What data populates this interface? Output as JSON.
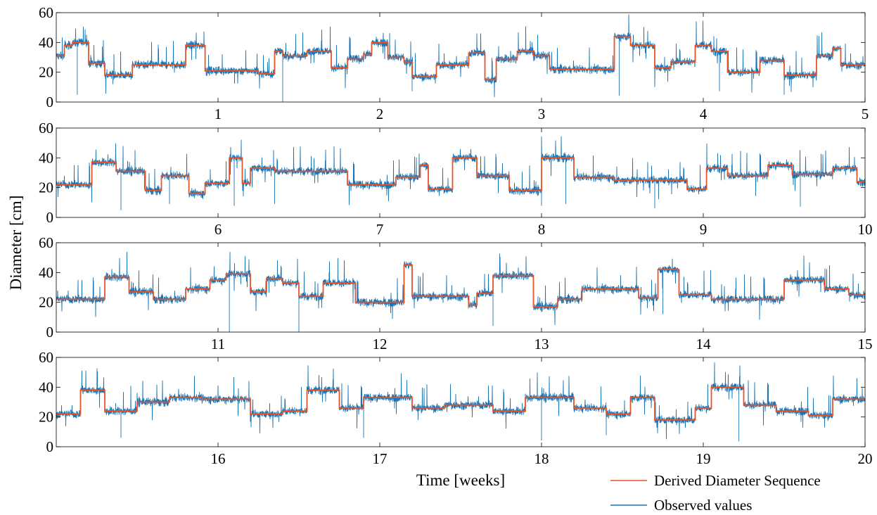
{
  "chart_data": {
    "type": "line",
    "layout": "4 stacked panels sharing one y-axis label",
    "ylabel": "Diameter [cm]",
    "xlabel": "Time [weeks]",
    "grid": false,
    "legend_placement": "bottom-right, below plot",
    "colors": {
      "derived": "#e8542a",
      "observed": "#1a74b4"
    },
    "series_legend": [
      {
        "name": "Derived Diameter Sequence",
        "color": "#e8542a"
      },
      {
        "name": "Observed values",
        "color": "#1a74b4"
      }
    ],
    "panels": [
      {
        "xlim": [
          0,
          5
        ],
        "ylim": [
          0,
          60
        ],
        "xticks": [
          1,
          2,
          3,
          4,
          5
        ],
        "xtick_labels": [
          "1",
          "2",
          "3",
          "4",
          "5"
        ],
        "yticks": [
          0,
          20,
          40,
          60
        ],
        "ytick_labels": [
          "0",
          "20",
          "40",
          "60"
        ],
        "derived_segments": [
          [
            0,
            0.05,
            31
          ],
          [
            0.05,
            0.1,
            38
          ],
          [
            0.1,
            0.2,
            40
          ],
          [
            0.2,
            0.3,
            26
          ],
          [
            0.3,
            0.47,
            18
          ],
          [
            0.47,
            0.8,
            25
          ],
          [
            0.8,
            0.92,
            38
          ],
          [
            0.92,
            1.25,
            21
          ],
          [
            1.25,
            1.35,
            19
          ],
          [
            1.35,
            1.4,
            34
          ],
          [
            1.4,
            1.55,
            31
          ],
          [
            1.55,
            1.7,
            34
          ],
          [
            1.7,
            1.8,
            23
          ],
          [
            1.8,
            1.9,
            29
          ],
          [
            1.9,
            1.95,
            32
          ],
          [
            1.95,
            2.05,
            40
          ],
          [
            2.05,
            2.15,
            30
          ],
          [
            2.15,
            2.2,
            27
          ],
          [
            2.2,
            2.35,
            17
          ],
          [
            2.35,
            2.55,
            25
          ],
          [
            2.55,
            2.65,
            33
          ],
          [
            2.65,
            2.72,
            15
          ],
          [
            2.72,
            2.85,
            29
          ],
          [
            2.85,
            2.95,
            34
          ],
          [
            2.95,
            3.05,
            31
          ],
          [
            3.05,
            3.45,
            22
          ],
          [
            3.45,
            3.55,
            44
          ],
          [
            3.55,
            3.7,
            38
          ],
          [
            3.7,
            3.8,
            23
          ],
          [
            3.8,
            3.95,
            27
          ],
          [
            3.95,
            4.05,
            38
          ],
          [
            4.05,
            4.15,
            34
          ],
          [
            4.15,
            4.35,
            20
          ],
          [
            4.35,
            4.5,
            28
          ],
          [
            4.5,
            4.7,
            18
          ],
          [
            4.7,
            4.8,
            31
          ],
          [
            4.8,
            4.85,
            36
          ],
          [
            4.85,
            5,
            25
          ]
        ],
        "observed_spikes": [
          [
            0.13,
            0.08
          ],
          [
            0.35,
            0.2
          ],
          [
            1.4,
            0.0
          ],
          [
            1.62,
            0.61
          ],
          [
            2.2,
            0.12
          ],
          [
            3.48,
            0.07
          ],
          [
            4.1,
            0.12
          ],
          [
            4.5,
            0.08
          ]
        ]
      },
      {
        "xlim": [
          5,
          10
        ],
        "ylim": [
          0,
          60
        ],
        "xticks": [
          6,
          7,
          8,
          9,
          10
        ],
        "xtick_labels": [
          "6",
          "7",
          "8",
          "9",
          "10"
        ],
        "yticks": [
          0,
          20,
          40,
          60
        ],
        "ytick_labels": [
          "0",
          "20",
          "40",
          "60"
        ],
        "derived_segments": [
          [
            5,
            5.22,
            22
          ],
          [
            5.22,
            5.37,
            37
          ],
          [
            5.37,
            5.55,
            31
          ],
          [
            5.55,
            5.65,
            18
          ],
          [
            5.65,
            5.82,
            28
          ],
          [
            5.82,
            5.92,
            16
          ],
          [
            5.92,
            6.07,
            23
          ],
          [
            6.07,
            6.15,
            40
          ],
          [
            6.15,
            6.2,
            23
          ],
          [
            6.2,
            6.35,
            33
          ],
          [
            6.35,
            6.55,
            31
          ],
          [
            6.55,
            6.8,
            31
          ],
          [
            6.8,
            7.1,
            22
          ],
          [
            7.1,
            7.25,
            27
          ],
          [
            7.25,
            7.3,
            35
          ],
          [
            7.3,
            7.45,
            19
          ],
          [
            7.45,
            7.6,
            40
          ],
          [
            7.6,
            7.8,
            28
          ],
          [
            7.8,
            8.0,
            18
          ],
          [
            8.0,
            8.2,
            40
          ],
          [
            8.2,
            8.45,
            27
          ],
          [
            8.45,
            8.9,
            25
          ],
          [
            8.9,
            9.02,
            19
          ],
          [
            9.02,
            9.15,
            33
          ],
          [
            9.15,
            9.4,
            28
          ],
          [
            9.4,
            9.55,
            35
          ],
          [
            9.55,
            9.8,
            29
          ],
          [
            9.8,
            9.95,
            33
          ],
          [
            9.95,
            10,
            24
          ]
        ],
        "observed_spikes": [
          [
            5.4,
            0.08
          ],
          [
            5.7,
            0.15
          ],
          [
            6.1,
            0.13
          ],
          [
            6.35,
            0.15
          ],
          [
            8.0,
            0.13
          ],
          [
            8.15,
            0.15
          ],
          [
            8.7,
            0.1
          ],
          [
            9.6,
            0.12
          ]
        ]
      },
      {
        "xlim": [
          10,
          15
        ],
        "ylim": [
          0,
          60
        ],
        "xticks": [
          11,
          12,
          13,
          14,
          15
        ],
        "xtick_labels": [
          "11",
          "12",
          "13",
          "14",
          "15"
        ],
        "yticks": [
          0,
          20,
          40,
          60
        ],
        "ytick_labels": [
          "0",
          "20",
          "40",
          "60"
        ],
        "derived_segments": [
          [
            10,
            10.2,
            22
          ],
          [
            10.2,
            10.3,
            22
          ],
          [
            10.3,
            10.45,
            37
          ],
          [
            10.45,
            10.6,
            27
          ],
          [
            10.6,
            10.8,
            22
          ],
          [
            10.8,
            10.95,
            29
          ],
          [
            10.95,
            11.05,
            35
          ],
          [
            11.05,
            11.2,
            39
          ],
          [
            11.2,
            11.3,
            27
          ],
          [
            11.3,
            11.4,
            36
          ],
          [
            11.4,
            11.5,
            33
          ],
          [
            11.5,
            11.65,
            24
          ],
          [
            11.65,
            11.85,
            33
          ],
          [
            11.85,
            12.15,
            20
          ],
          [
            12.15,
            12.2,
            45
          ],
          [
            12.2,
            12.55,
            24
          ],
          [
            12.55,
            12.6,
            18
          ],
          [
            12.6,
            12.7,
            26
          ],
          [
            12.7,
            12.95,
            38
          ],
          [
            12.95,
            13.1,
            17
          ],
          [
            13.1,
            13.25,
            22
          ],
          [
            13.25,
            13.6,
            29
          ],
          [
            13.6,
            13.72,
            23
          ],
          [
            13.72,
            13.85,
            42
          ],
          [
            13.85,
            14.05,
            25
          ],
          [
            14.05,
            14.5,
            22
          ],
          [
            14.5,
            14.75,
            35
          ],
          [
            14.75,
            14.9,
            29
          ],
          [
            14.9,
            15,
            25
          ]
        ],
        "observed_spikes": [
          [
            11.07,
            0.0
          ],
          [
            11.5,
            0.0
          ],
          [
            12.7,
            0.07
          ],
          [
            13.75,
            0.2
          ]
        ]
      },
      {
        "xlim": [
          15,
          20
        ],
        "ylim": [
          0,
          60
        ],
        "xticks": [
          16,
          17,
          18,
          19,
          20
        ],
        "xtick_labels": [
          "16",
          "17",
          "18",
          "19",
          "20"
        ],
        "yticks": [
          0,
          20,
          40,
          60
        ],
        "ytick_labels": [
          "0",
          "20",
          "40",
          "60"
        ],
        "derived_segments": [
          [
            15,
            15.15,
            22
          ],
          [
            15.15,
            15.3,
            38
          ],
          [
            15.3,
            15.5,
            24
          ],
          [
            15.5,
            15.7,
            30
          ],
          [
            15.7,
            15.9,
            33
          ],
          [
            15.9,
            16.2,
            32
          ],
          [
            16.2,
            16.4,
            22
          ],
          [
            16.4,
            16.55,
            24
          ],
          [
            16.55,
            16.75,
            38
          ],
          [
            16.75,
            16.9,
            26
          ],
          [
            16.9,
            17.2,
            33
          ],
          [
            17.2,
            17.4,
            26
          ],
          [
            17.4,
            17.7,
            28
          ],
          [
            17.7,
            17.9,
            24
          ],
          [
            17.9,
            18.2,
            33
          ],
          [
            18.2,
            18.4,
            26
          ],
          [
            18.4,
            18.55,
            22
          ],
          [
            18.55,
            18.7,
            33
          ],
          [
            18.7,
            18.95,
            18
          ],
          [
            18.95,
            19.05,
            26
          ],
          [
            19.05,
            19.25,
            40
          ],
          [
            19.25,
            19.45,
            28
          ],
          [
            19.45,
            19.65,
            24
          ],
          [
            19.65,
            19.8,
            21
          ],
          [
            19.8,
            20,
            32
          ]
        ],
        "observed_spikes": [
          [
            15.4,
            0.1
          ],
          [
            16.9,
            0.1
          ],
          [
            18.0,
            0.07
          ],
          [
            18.4,
            0.13
          ],
          [
            19.22,
            0.06
          ]
        ]
      }
    ]
  },
  "axes": {
    "ylabel": "Diameter [cm]",
    "xlabel": "Time [weeks]"
  },
  "legend": {
    "derived_label": "Derived Diameter Sequence",
    "observed_label": "Observed values"
  }
}
